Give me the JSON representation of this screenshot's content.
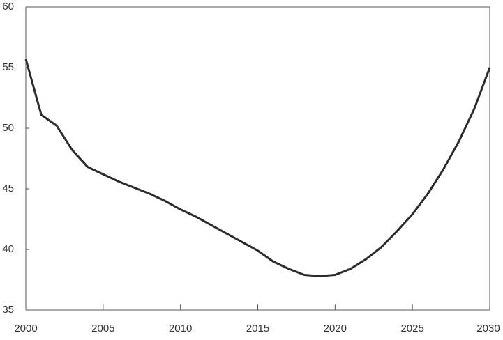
{
  "chart_data": {
    "type": "line",
    "x": [
      2000,
      2001,
      2002,
      2003,
      2004,
      2005,
      2006,
      2007,
      2008,
      2009,
      2010,
      2011,
      2012,
      2013,
      2014,
      2015,
      2016,
      2017,
      2018,
      2019,
      2020,
      2021,
      2022,
      2023,
      2024,
      2025,
      2026,
      2027,
      2028,
      2029,
      2030
    ],
    "series": [
      {
        "color": "#2b2b2b",
        "values": [
          55.7,
          51.1,
          50.2,
          48.2,
          46.8,
          46.2,
          45.6,
          45.1,
          44.6,
          44.0,
          43.3,
          42.7,
          42.0,
          41.3,
          40.6,
          39.9,
          39.0,
          38.4,
          37.9,
          37.8,
          37.9,
          38.4,
          39.2,
          40.2,
          41.5,
          42.9,
          44.6,
          46.6,
          48.9,
          51.6,
          55.0
        ]
      }
    ],
    "xlim": [
      2000,
      2030
    ],
    "xticks": [
      2000,
      2005,
      2010,
      2015,
      2020,
      2025,
      2030
    ],
    "ylim": [
      35,
      60
    ],
    "yticks": [
      35,
      40,
      45,
      50,
      55,
      60
    ]
  }
}
